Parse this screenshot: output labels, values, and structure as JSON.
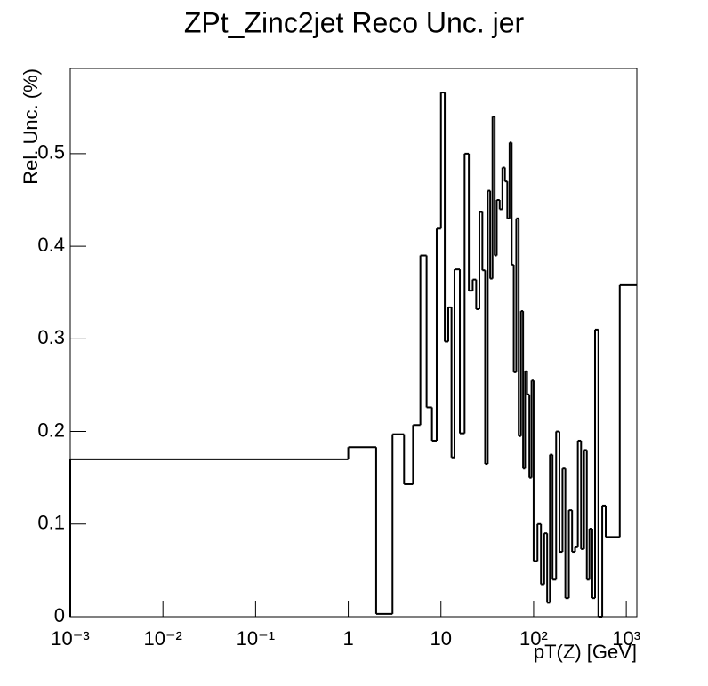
{
  "chart_data": {
    "type": "histogram",
    "title": "ZPt_Zinc2jet Reco Unc. jer",
    "x_label": "pT(Z) [GeV]",
    "y_label": "Rel. Unc. (%)",
    "xscale": "log",
    "color": "#000000",
    "bins": [
      0.001,
      1,
      2,
      3,
      4,
      5,
      6,
      7,
      8,
      9,
      10,
      11,
      12,
      13,
      14,
      16,
      18,
      20,
      22,
      24,
      26,
      28,
      30,
      32,
      34,
      36,
      38,
      40,
      43,
      46,
      49,
      52,
      55,
      58,
      61,
      65,
      69,
      73,
      77,
      81,
      85,
      90,
      95,
      100,
      110,
      120,
      130,
      140,
      150,
      160,
      175,
      190,
      205,
      220,
      240,
      260,
      280,
      300,
      325,
      350,
      375,
      400,
      430,
      460,
      500,
      550,
      600,
      850,
      1300
    ],
    "values": [
      0.17,
      0.183,
      0.003,
      0.197,
      0.143,
      0.207,
      0.39,
      0.226,
      0.19,
      0.419,
      0.566,
      0.297,
      0.334,
      0.172,
      0.375,
      0.198,
      0.5,
      0.352,
      0.364,
      0.332,
      0.437,
      0.374,
      0.165,
      0.46,
      0.365,
      0.54,
      0.39,
      0.45,
      0.44,
      0.485,
      0.47,
      0.43,
      0.512,
      0.38,
      0.264,
      0.43,
      0.195,
      0.33,
      0.16,
      0.265,
      0.24,
      0.15,
      0.255,
      0.06,
      0.1,
      0.035,
      0.09,
      0.015,
      0.175,
      0.04,
      0.2,
      0.07,
      0.16,
      0.02,
      0.115,
      0.07,
      0.075,
      0.19,
      0.073,
      0.18,
      0.04,
      0.095,
      0.02,
      0.31,
      0,
      0.12,
      0.086,
      0.358
    ],
    "xlim": [
      0.001,
      1300
    ],
    "ylim": [
      0,
      0.592
    ],
    "xticks": [
      {
        "value": 0.001,
        "label": "10⁻³"
      },
      {
        "value": 0.01,
        "label": "10⁻²"
      },
      {
        "value": 0.1,
        "label": "10⁻¹"
      },
      1,
      10,
      {
        "value": 100,
        "label": "10²"
      },
      {
        "value": 1000,
        "label": "10³"
      }
    ],
    "yticks": [
      0,
      0.1,
      0.2,
      0.3,
      0.4,
      0.5
    ]
  }
}
